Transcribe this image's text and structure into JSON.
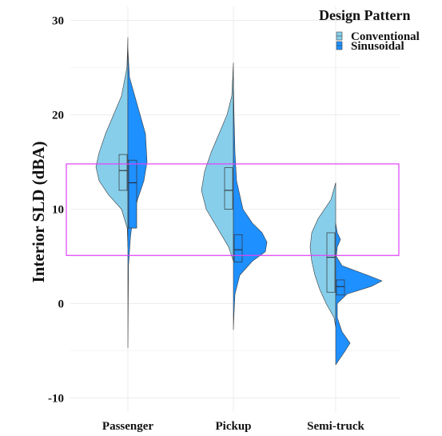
{
  "chart_data": {
    "type": "split-violin",
    "title": "",
    "xlabel": "",
    "ylabel": "Interior SLD (dBA)",
    "categories": [
      "Passenger",
      "Pickup",
      "Semi-truck"
    ],
    "yticks": [
      -10,
      0,
      10,
      20,
      30
    ],
    "ylim": [
      -11.5,
      31.5
    ],
    "grid": true,
    "legend": {
      "title": "Design Pattern",
      "position": "top-right",
      "entries": [
        "Conventional",
        "Sinusoidal"
      ]
    },
    "colors": {
      "Conventional": "#87ceeb",
      "Sinusoidal": "#1e90ff",
      "highlight_box": "#e040fb"
    },
    "highlight_box": {
      "y_range": [
        5.1,
        14.8
      ]
    },
    "series": [
      {
        "name": "Conventional",
        "side": "left",
        "groups": [
          {
            "category": "Passenger",
            "box": {
              "q1": 12.0,
              "median": 14.1,
              "q3": 15.8
            },
            "density": [
              [
                28.2,
                0
              ],
              [
                25,
                0.03
              ],
              [
                22,
                0.2
              ],
              [
                20,
                0.45
              ],
              [
                18,
                0.7
              ],
              [
                16,
                0.9
              ],
              [
                14.5,
                1.0
              ],
              [
                13,
                0.9
              ],
              [
                11.5,
                0.6
              ],
              [
                10,
                0.2
              ],
              [
                8,
                0.02
              ],
              [
                6,
                0
              ]
            ]
          },
          {
            "category": "Pickup",
            "box": {
              "q1": 10.0,
              "median": 12.0,
              "q3": 14.4
            },
            "density": [
              [
                25.5,
                0
              ],
              [
                22,
                0.05
              ],
              [
                20,
                0.2
              ],
              [
                18,
                0.45
              ],
              [
                16,
                0.7
              ],
              [
                14,
                0.9
              ],
              [
                12,
                1.0
              ],
              [
                10,
                0.85
              ],
              [
                8,
                0.5
              ],
              [
                6,
                0.15
              ],
              [
                4.5,
                0
              ]
            ]
          },
          {
            "category": "Semi-truck",
            "box": {
              "q1": 1.2,
              "median": 4.9,
              "q3": 7.5
            },
            "density": [
              [
                12.8,
                0
              ],
              [
                11,
                0.15
              ],
              [
                9,
                0.55
              ],
              [
                7.5,
                0.75
              ],
              [
                6,
                0.8
              ],
              [
                4.5,
                0.75
              ],
              [
                3,
                0.65
              ],
              [
                1.5,
                0.5
              ],
              [
                0,
                0.3
              ],
              [
                -1.5,
                0.05
              ],
              [
                -2.5,
                0
              ]
            ]
          }
        ]
      },
      {
        "name": "Sinusoidal",
        "side": "right",
        "groups": [
          {
            "category": "Passenger",
            "box": {
              "q1": 8.0,
              "median": 12.8,
              "q3": 15.2
            },
            "density": [
              [
                27,
                0
              ],
              [
                24,
                0.05
              ],
              [
                21,
                0.3
              ],
              [
                18,
                0.55
              ],
              [
                15,
                0.6
              ],
              [
                13,
                0.5
              ],
              [
                11,
                0.3
              ],
              [
                9,
                0.15
              ],
              [
                7,
                0.08
              ],
              [
                4,
                0.02
              ],
              [
                0,
                0.01
              ],
              [
                -4.7,
                0
              ]
            ]
          },
          {
            "category": "Pickup",
            "box": {
              "q1": 4.4,
              "median": 5.7,
              "q3": 7.3
            },
            "density": [
              [
                24,
                0
              ],
              [
                20,
                0.02
              ],
              [
                16,
                0.05
              ],
              [
                13,
                0.1
              ],
              [
                10,
                0.3
              ],
              [
                8.5,
                0.6
              ],
              [
                7.5,
                0.9
              ],
              [
                6.5,
                1.05
              ],
              [
                5.5,
                1.0
              ],
              [
                4.5,
                0.6
              ],
              [
                3,
                0.2
              ],
              [
                1,
                0.05
              ],
              [
                -1,
                0.02
              ],
              [
                -2.8,
                0
              ]
            ]
          },
          {
            "category": "Semi-truck",
            "box": {
              "q1": 0.9,
              "median": 1.8,
              "q3": 2.5
            },
            "density": [
              [
                8.5,
                0
              ],
              [
                7.5,
                0.05
              ],
              [
                6.8,
                0.15
              ],
              [
                6,
                0.05
              ],
              [
                5,
                0.02
              ],
              [
                4,
                0.2
              ],
              [
                3,
                1.0
              ],
              [
                2.4,
                1.45
              ],
              [
                1.8,
                1.1
              ],
              [
                1,
                0.35
              ],
              [
                0,
                0.05
              ],
              [
                -1.5,
                0.05
              ],
              [
                -3,
                0.2
              ],
              [
                -4.2,
                0.45
              ],
              [
                -5,
                0.3
              ],
              [
                -6.5,
                0
              ]
            ]
          }
        ]
      }
    ]
  }
}
